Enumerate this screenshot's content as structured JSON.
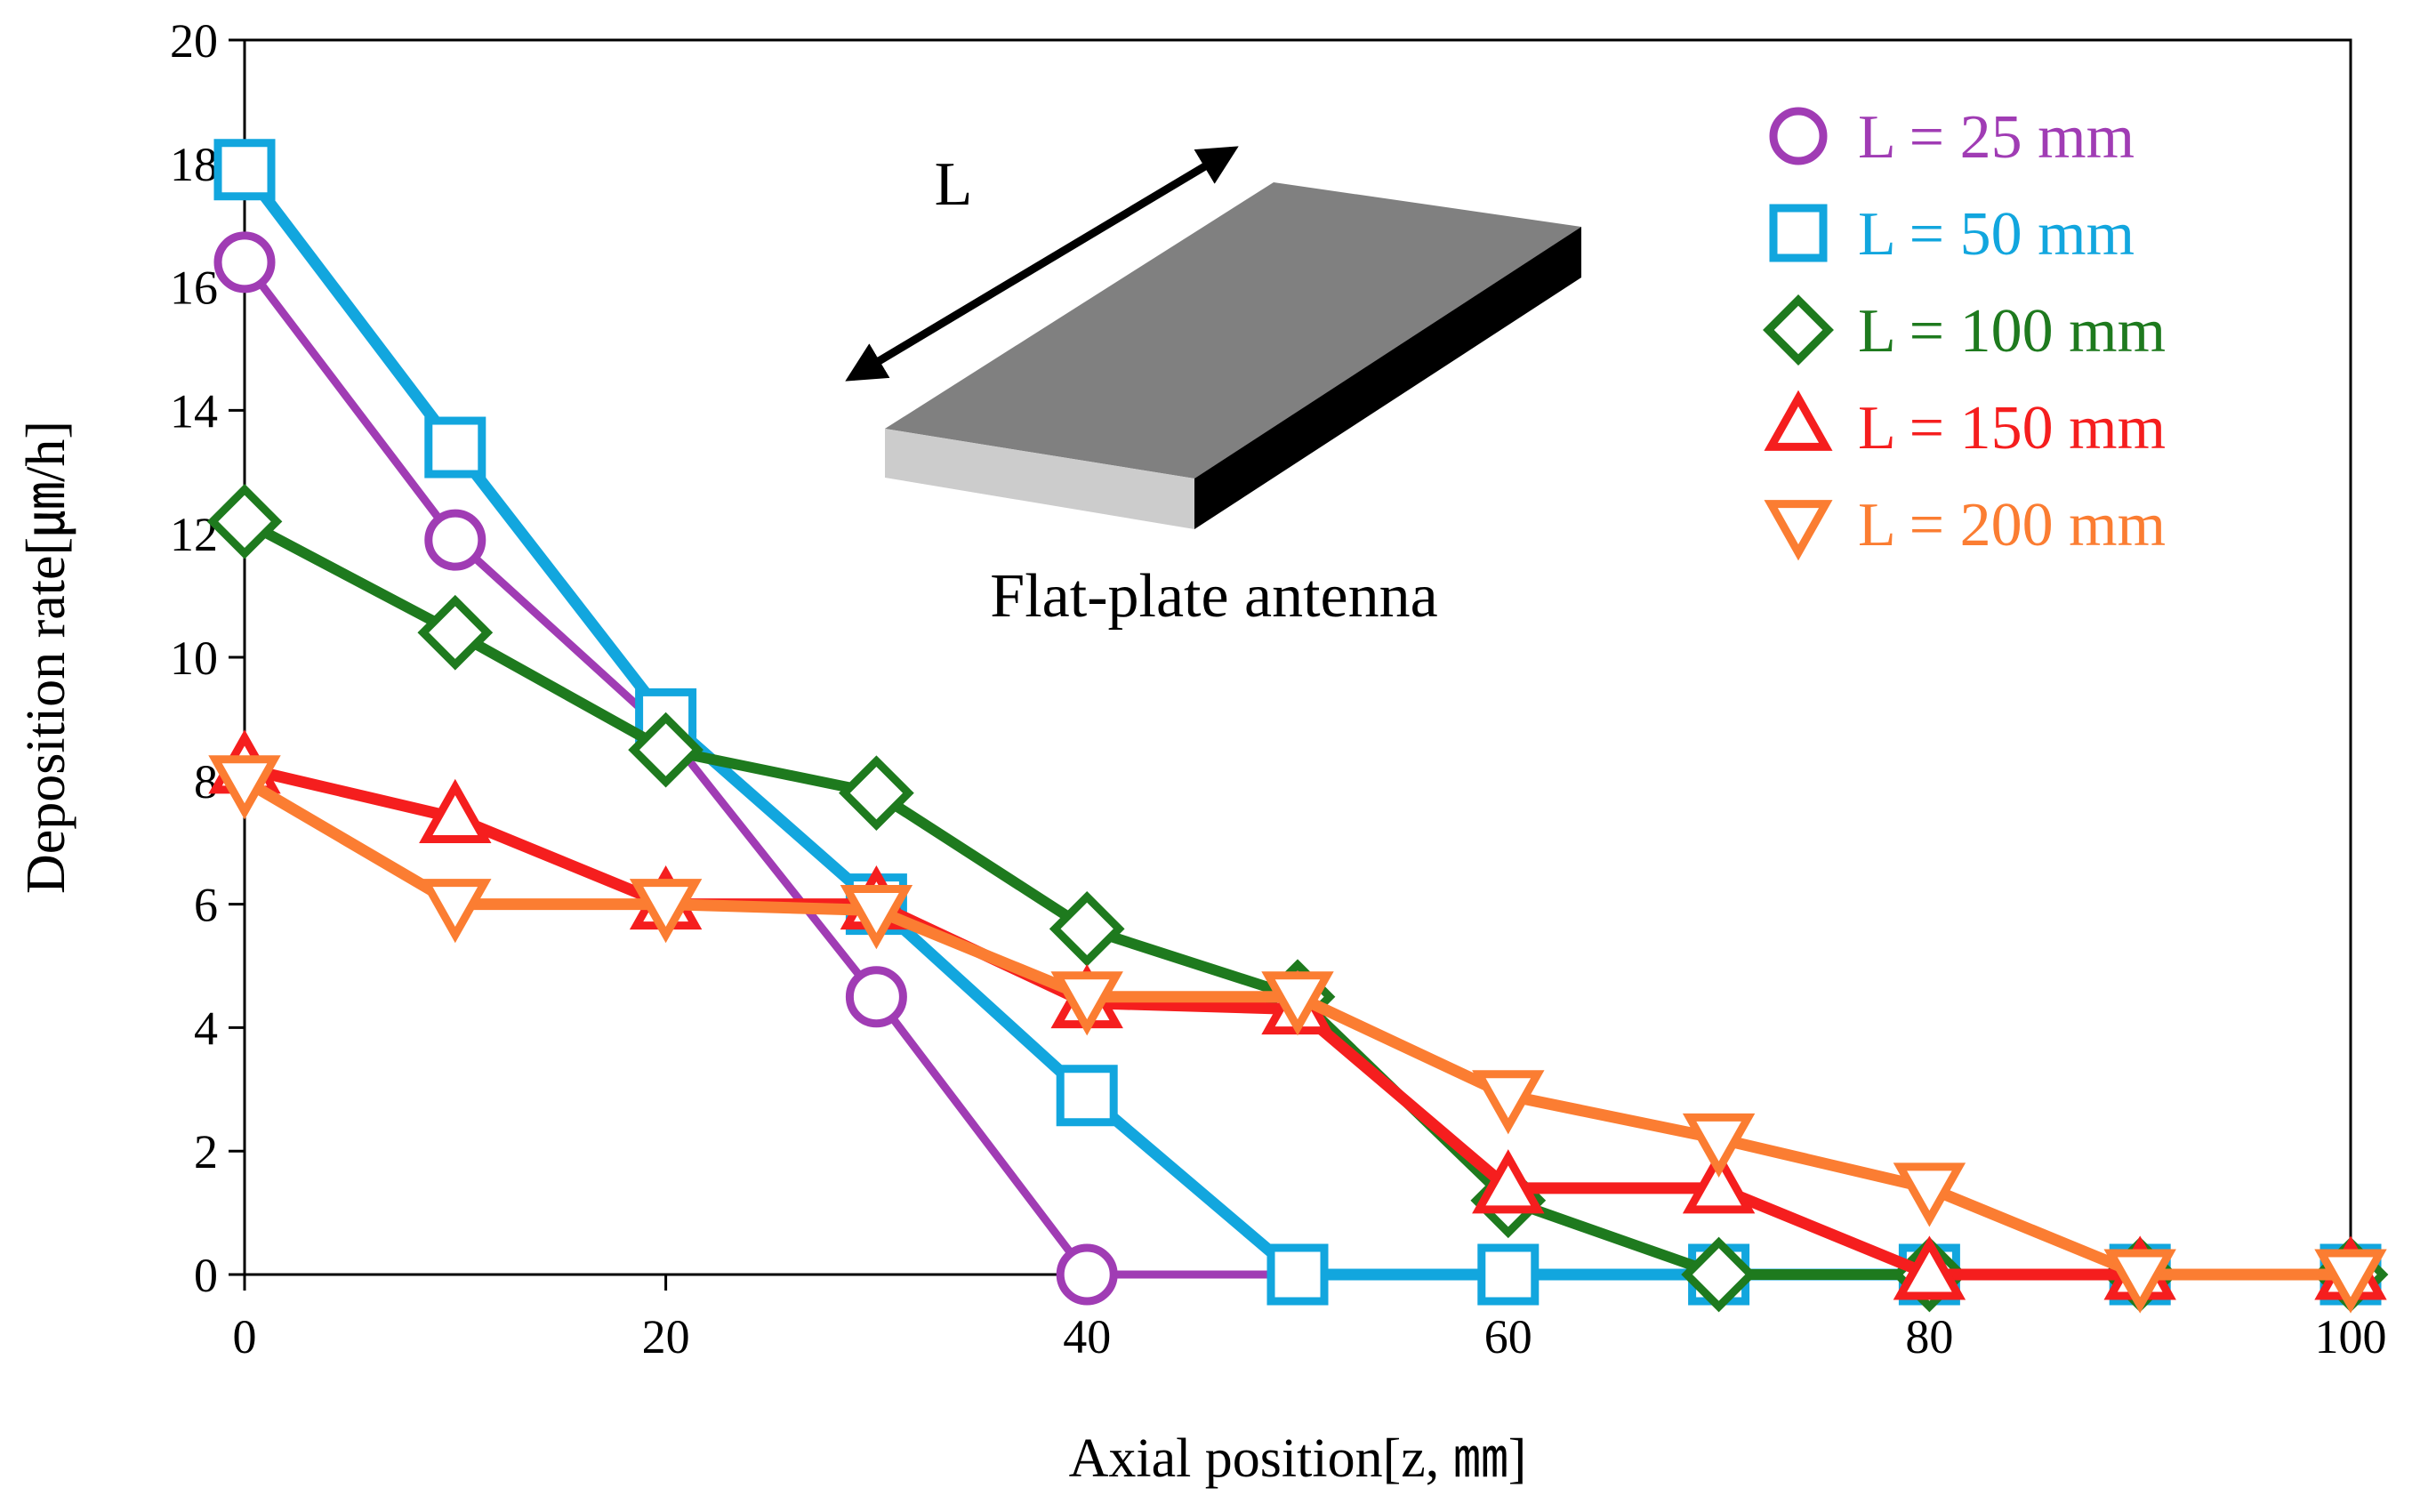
{
  "chart_data": {
    "type": "line",
    "title": "",
    "xlabel": "Axial position[z, ㎜]",
    "ylabel": "Deposition rate[㎛/h]",
    "xlim": [
      0,
      100
    ],
    "ylim": [
      0,
      20
    ],
    "x_ticks": [
      0,
      20,
      40,
      60,
      80,
      100
    ],
    "y_ticks": [
      0,
      2,
      4,
      6,
      8,
      10,
      12,
      14,
      16,
      18,
      20
    ],
    "x_tick_labels": [
      "0",
      "20",
      "40",
      "60",
      "80",
      "100"
    ],
    "y_tick_labels": [
      "0",
      "2",
      "4",
      "6",
      "8",
      "10",
      "12",
      "14",
      "16",
      "18",
      "20"
    ],
    "grid": false,
    "legend_position": "top-right",
    "series": [
      {
        "name": "L = 25 mm",
        "color": "#a03cb4",
        "marker": "circle",
        "x": [
          0,
          10,
          20,
          30,
          40,
          50,
          60,
          70,
          80,
          90,
          100
        ],
        "values": [
          16.4,
          11.9,
          8.8,
          4.5,
          0.0,
          0.0,
          0.0,
          0.0,
          0.0,
          0.0,
          0.0
        ]
      },
      {
        "name": "L = 50 mm",
        "color": "#12a6de",
        "marker": "square",
        "x": [
          0,
          10,
          20,
          30,
          40,
          50,
          60,
          70,
          80,
          90,
          100
        ],
        "values": [
          17.9,
          13.4,
          9.0,
          6.0,
          2.9,
          0.0,
          0.0,
          0.0,
          0.0,
          0.0,
          0.0
        ]
      },
      {
        "name": "L = 100 mm",
        "color": "#1e7a1e",
        "marker": "diamond",
        "x": [
          0,
          10,
          20,
          30,
          40,
          50,
          60,
          70,
          80,
          90,
          100
        ],
        "values": [
          12.2,
          10.4,
          8.5,
          7.8,
          5.6,
          4.5,
          1.2,
          0.0,
          0.0,
          0.0,
          0.0
        ]
      },
      {
        "name": "L = 150 mm",
        "color": "#f51e1e",
        "marker": "triangle-up",
        "x": [
          0,
          10,
          20,
          30,
          40,
          50,
          60,
          70,
          80,
          90,
          100
        ],
        "values": [
          8.2,
          7.4,
          6.0,
          6.0,
          4.4,
          4.3,
          1.4,
          1.4,
          0.0,
          0.0,
          0.0
        ]
      },
      {
        "name": "L = 200 mm",
        "color": "#fb7d32",
        "marker": "triangle-down",
        "x": [
          0,
          10,
          20,
          30,
          40,
          50,
          60,
          70,
          80,
          90,
          100
        ],
        "values": [
          8.0,
          6.0,
          6.0,
          5.9,
          4.5,
          4.5,
          2.9,
          2.2,
          1.4,
          0.0,
          0.0
        ]
      }
    ]
  },
  "inset": {
    "dimension_label": "L",
    "caption": "Flat-plate antenna"
  }
}
